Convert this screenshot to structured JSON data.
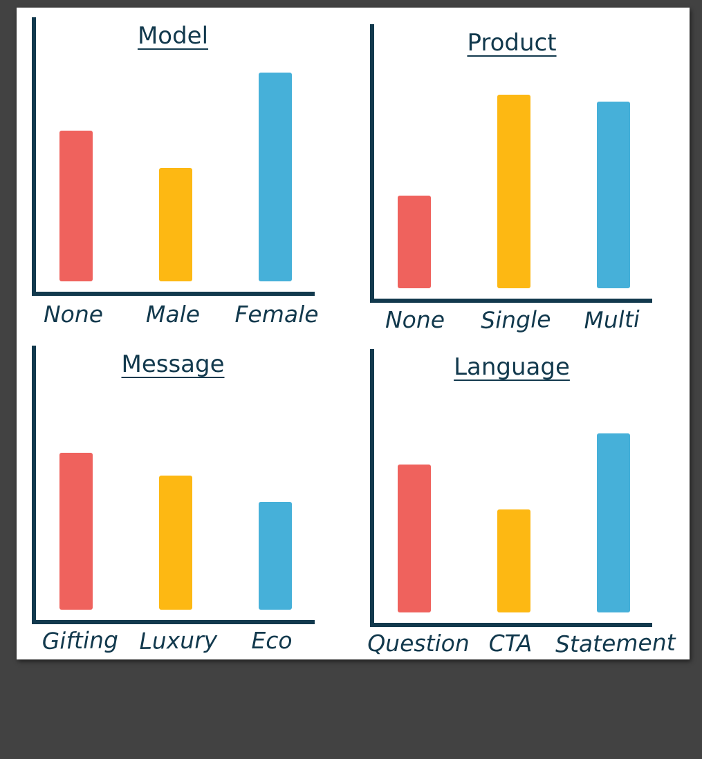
{
  "colors": {
    "background": "#424242",
    "card": "#ffffff",
    "axis": "#12394d",
    "text": "#12394d",
    "bar_colors": [
      "#ef625d",
      "#fdb813",
      "#46b0d9"
    ]
  },
  "chart_data": [
    {
      "type": "bar",
      "title": "Model",
      "categories": [
        "None",
        "Male",
        "Female"
      ],
      "values": [
        218,
        164,
        302
      ],
      "ylim": [
        0,
        330
      ],
      "grid": false
    },
    {
      "type": "bar",
      "title": "Product",
      "categories": [
        "None",
        "Single",
        "Multi"
      ],
      "values": [
        134,
        280,
        270
      ],
      "ylim": [
        0,
        330
      ],
      "grid": false
    },
    {
      "type": "bar",
      "title": "Message",
      "categories": [
        "Gifting",
        "Luxury",
        "Eco"
      ],
      "values": [
        227,
        194,
        156
      ],
      "ylim": [
        0,
        330
      ],
      "grid": false
    },
    {
      "type": "bar",
      "title": "Language",
      "categories": [
        "Question",
        "CTA",
        "Statement"
      ],
      "values": [
        214,
        149,
        259
      ],
      "ylim": [
        0,
        330
      ],
      "grid": false
    }
  ]
}
